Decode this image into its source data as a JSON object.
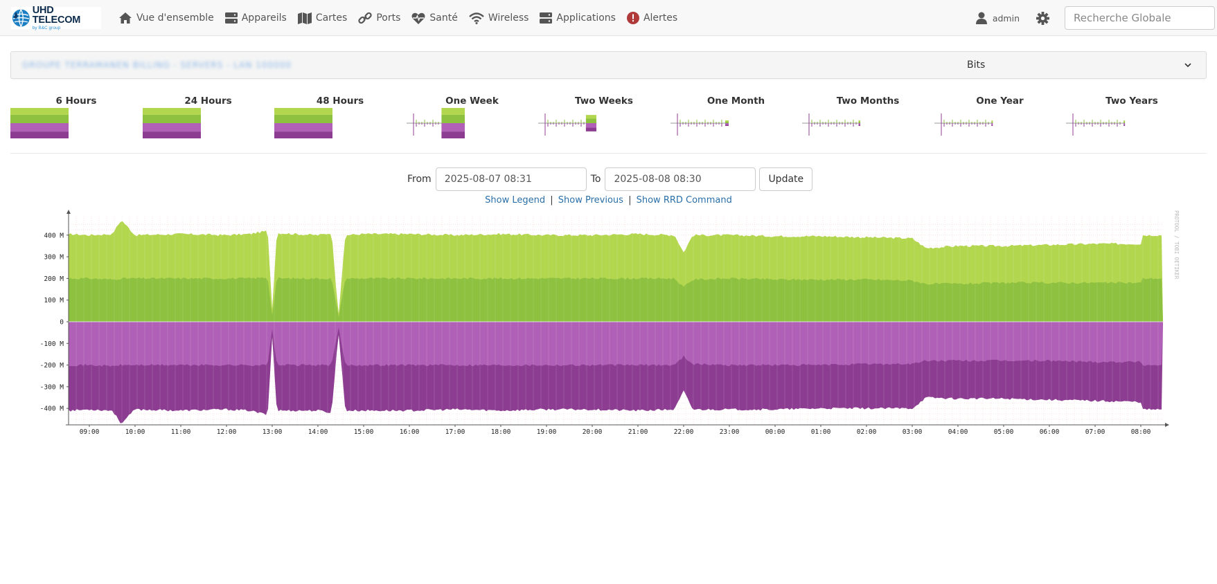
{
  "brand": {
    "name": "UHD TELECOM",
    "tagline": "by B&C group"
  },
  "nav": [
    {
      "label": "Vue d'ensemble",
      "icon": "home-icon"
    },
    {
      "label": "Appareils",
      "icon": "server-icon"
    },
    {
      "label": "Cartes",
      "icon": "map-icon"
    },
    {
      "label": "Ports",
      "icon": "link-icon"
    },
    {
      "label": "Santé",
      "icon": "heartbeat-icon"
    },
    {
      "label": "Wireless",
      "icon": "wifi-icon"
    },
    {
      "label": "Applications",
      "icon": "server-icon"
    },
    {
      "label": "Alertes",
      "icon": "alert-icon"
    }
  ],
  "user": {
    "name": "admin"
  },
  "search": {
    "placeholder": "Recherche Globale"
  },
  "panel": {
    "blurred_title": "GROUPE TERRAMANEN BILLING - SERVERS - LAN 100000",
    "graph_type": "Bits"
  },
  "thumbnails": [
    "6 Hours",
    "24 Hours",
    "48 Hours",
    "One Week",
    "Two Weeks",
    "One Month",
    "Two Months",
    "One Year",
    "Two Years"
  ],
  "form": {
    "from_label": "From",
    "from_value": "2025-08-07 08:31",
    "to_label": "To",
    "to_value": "2025-08-08 08:30",
    "update_label": "Update"
  },
  "links": {
    "show_legend": "Show Legend",
    "show_previous": "Show Previous",
    "show_rrd": "Show RRD Command",
    "separator": "|"
  },
  "graph": {
    "watermark": "PROTOOL / TOBI OETIKER",
    "colors": {
      "in_outer": "#b3d64f",
      "in_inner": "#8dc13f",
      "out_outer": "#b060b6",
      "out_inner": "#8c3d91"
    }
  },
  "chart_data": {
    "type": "area",
    "xlabel": "",
    "ylabel": "",
    "ylim": [
      -480,
      480
    ],
    "y_unit": "M",
    "y_ticks": [
      400,
      300,
      200,
      100,
      0,
      -100,
      -200,
      -300,
      -400
    ],
    "y_tick_labels": [
      "400 M",
      "300 M",
      "200 M",
      "100 M",
      "0",
      "-100 M",
      "-200 M",
      "-300 M",
      "-400 M"
    ],
    "x_tick_labels": [
      "09:00",
      "10:00",
      "11:00",
      "12:00",
      "13:00",
      "14:00",
      "15:00",
      "16:00",
      "17:00",
      "18:00",
      "19:00",
      "20:00",
      "21:00",
      "22:00",
      "23:00",
      "00:00",
      "01:00",
      "02:00",
      "03:00",
      "04:00",
      "05:00",
      "06:00",
      "07:00",
      "08:00"
    ],
    "x_hours": [
      8.55,
      9.0,
      9.5,
      9.7,
      10.0,
      11.0,
      12.0,
      12.5,
      12.9,
      13.0,
      13.1,
      13.5,
      14.0,
      14.3,
      14.45,
      14.6,
      15.0,
      16.0,
      17.0,
      18.0,
      19.0,
      20.0,
      21.0,
      21.8,
      22.0,
      22.2,
      23.0,
      0.0,
      1.0,
      2.0,
      3.0,
      3.3,
      4.0,
      5.0,
      6.0,
      7.0,
      8.0,
      8.5
    ],
    "series": [
      {
        "name": "",
        "values": [
          405,
          400,
          405,
          470,
          400,
          405,
          400,
          405,
          420,
          60,
          410,
          405,
          400,
          410,
          30,
          400,
          405,
          405,
          400,
          405,
          400,
          400,
          405,
          400,
          320,
          400,
          400,
          395,
          395,
          390,
          385,
          340,
          350,
          350,
          355,
          360,
          360,
          400
        ]
      },
      {
        "name": "",
        "values": [
          200,
          200,
          195,
          200,
          200,
          200,
          200,
          200,
          205,
          30,
          200,
          200,
          200,
          200,
          20,
          200,
          200,
          200,
          200,
          200,
          200,
          200,
          200,
          200,
          160,
          195,
          200,
          195,
          195,
          195,
          190,
          175,
          175,
          180,
          180,
          180,
          180,
          200
        ]
      },
      {
        "name": "",
        "values": [
          -200,
          -200,
          -205,
          -200,
          -200,
          -200,
          -200,
          -200,
          -200,
          -30,
          -200,
          -200,
          -200,
          -200,
          -25,
          -200,
          -200,
          -200,
          -200,
          -200,
          -200,
          -200,
          -200,
          -200,
          -160,
          -195,
          -200,
          -200,
          -200,
          -195,
          -195,
          -180,
          -180,
          -180,
          -180,
          -185,
          -185,
          -200
        ]
      },
      {
        "name": "",
        "values": [
          -410,
          -405,
          -410,
          -470,
          -405,
          -410,
          -405,
          -410,
          -430,
          -70,
          -410,
          -410,
          -410,
          -420,
          -45,
          -410,
          -410,
          -410,
          -405,
          -410,
          -405,
          -405,
          -410,
          -405,
          -320,
          -405,
          -405,
          -405,
          -400,
          -400,
          -400,
          -350,
          -355,
          -355,
          -360,
          -365,
          -370,
          -405
        ]
      }
    ]
  }
}
